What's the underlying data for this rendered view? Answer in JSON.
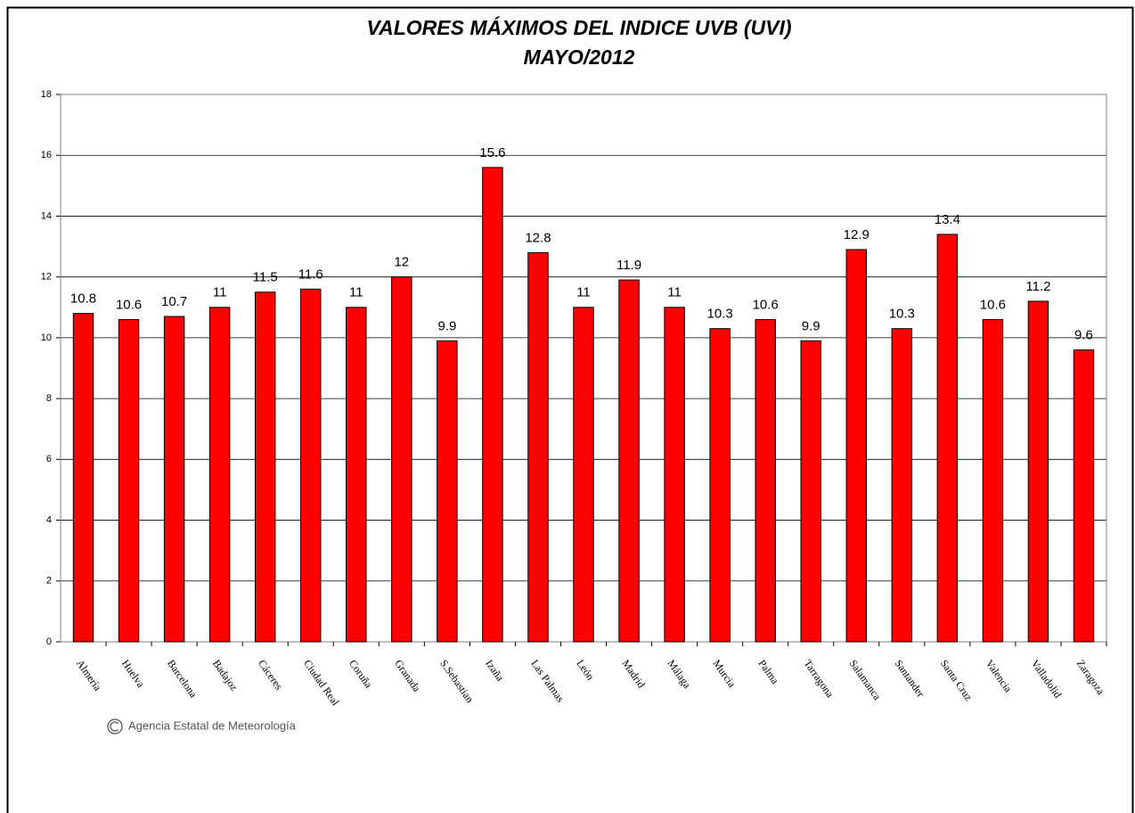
{
  "chart_data": {
    "type": "bar",
    "title": "VALORES MÁXIMOS DEL INDICE UVB (UVI)",
    "subtitle": "MAYO/2012",
    "categories": [
      "Almería",
      "Huelva",
      "Barcelona",
      "Badajoz",
      "Cáceres",
      "Ciudad Real",
      "Coruña",
      "Granada",
      "S.Sebastian",
      "Izaña",
      "Las Palmas",
      "León",
      "Madrid",
      "Málaga",
      "Murcia",
      "Palma",
      "Tarragona",
      "Salamanca",
      "Santander",
      "Santa Cruz",
      "Valencia",
      "Valladolid",
      "Zaragoza"
    ],
    "values": [
      10.8,
      10.6,
      10.7,
      11,
      11.5,
      11.6,
      11,
      12,
      9.9,
      15.6,
      12.8,
      11,
      11.9,
      11,
      10.3,
      10.6,
      9.9,
      12.9,
      10.3,
      13.4,
      10.6,
      11.2,
      9.6
    ],
    "color": "#ff0000",
    "ylim": [
      0,
      18
    ],
    "yticks": [
      0,
      2,
      4,
      6,
      8,
      10,
      12,
      14,
      16,
      18
    ],
    "grid": true,
    "data_labels": true,
    "source": "Agencia Estatal de Meteorología"
  }
}
